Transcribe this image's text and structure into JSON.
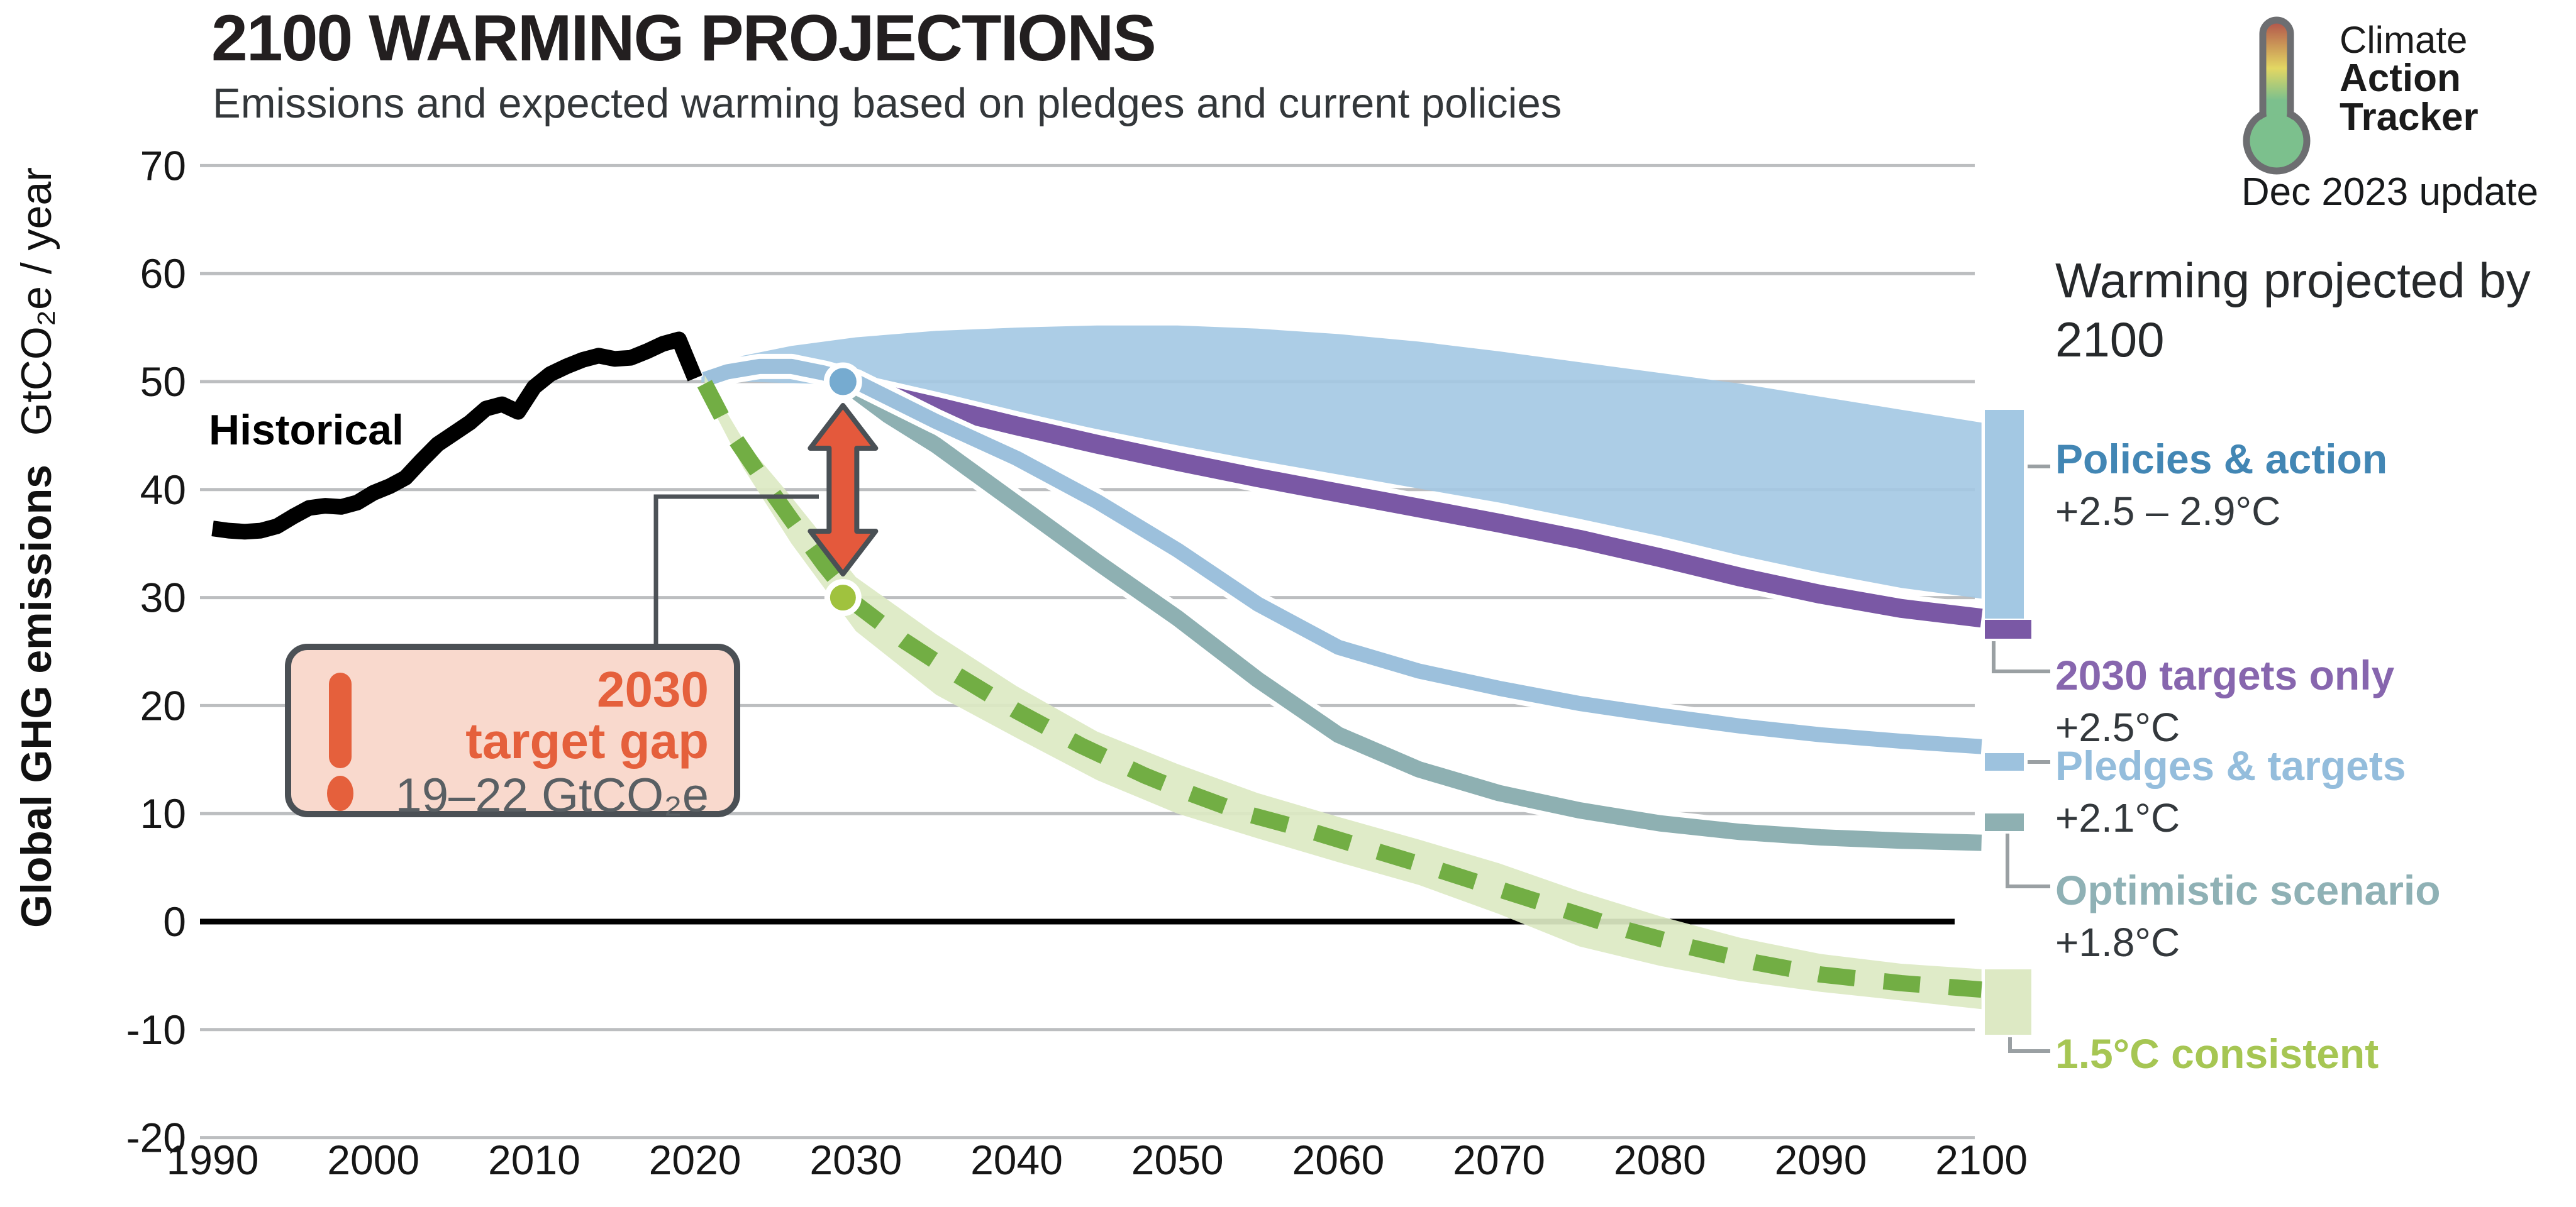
{
  "header": {
    "title": "2100 WARMING PROJECTIONS",
    "subtitle": "Emissions and expected warming based on pledges and current policies"
  },
  "logo": {
    "line1": "Climate",
    "line2": "Action",
    "line3": "Tracker",
    "update": "Dec 2023 update",
    "color_light": "#4cb9e3",
    "color_bold": "#2aa1d9"
  },
  "legend": {
    "heading": "Warming projected by 2100",
    "items": [
      {
        "label": "Policies & action",
        "temp": "+2.5 – 2.9°C",
        "text_color": "#4286b4",
        "swatch_color": "#a3c8e3"
      },
      {
        "label": "2030 targets only",
        "temp": "+2.5°C",
        "text_color": "#8766ae",
        "swatch_color": "#7a58a5"
      },
      {
        "label": "Pledges & targets",
        "temp": "+2.1°C",
        "text_color": "#94bddc",
        "swatch_color": "#9dc2de"
      },
      {
        "label": "Optimistic scenario",
        "temp": "+1.8°C",
        "text_color": "#8fb1b5",
        "swatch_color": "#8eb0b2"
      },
      {
        "label": "1.5°C consistent",
        "temp": "",
        "text_color": "#a6c653",
        "swatch_color": "#dde9c4"
      }
    ]
  },
  "callout": {
    "line1": "2030",
    "line2": "target gap",
    "value": "19–22  GtCO₂e",
    "accent": "#e5603c",
    "bg": "#f9d9cd",
    "border": "#4b5055"
  },
  "annotations": {
    "historical_label": "Historical",
    "policies_dot": {
      "year": 2029.2,
      "value": 50,
      "color": "#76abd0"
    },
    "consistent_dot": {
      "year": 2029.2,
      "value": 30,
      "color": "#a0c23e"
    },
    "gap_arrow": {
      "year": 2029.2,
      "from": 48,
      "to": 32,
      "color": "#e4593c",
      "outline": "#4a5055"
    }
  },
  "chart_data": {
    "type": "line",
    "title": "2100 WARMING PROJECTIONS",
    "xlabel": "",
    "ylabel_bold": "Global GHG emissions",
    "ylabel_unit": "GtCO₂e / year",
    "xlim": [
      1990,
      2100
    ],
    "ylim": [
      -20,
      70
    ],
    "x_ticks": [
      1990,
      2000,
      2010,
      2020,
      2030,
      2040,
      2050,
      2060,
      2070,
      2080,
      2090,
      2100
    ],
    "y_ticks": [
      70,
      60,
      50,
      40,
      30,
      20,
      10,
      0,
      -10,
      -20
    ],
    "grid": "horizontal",
    "gridline_color": "#bcbec0",
    "zero_line_color": "#000000",
    "series": [
      {
        "name": "Historical",
        "type": "line",
        "color": "#000000",
        "width": 25,
        "points": [
          [
            1990,
            36.4
          ],
          [
            1991,
            36.2
          ],
          [
            1992,
            36.1
          ],
          [
            1993,
            36.2
          ],
          [
            1994,
            36.6
          ],
          [
            1995,
            37.5
          ],
          [
            1996,
            38.3
          ],
          [
            1997,
            38.5
          ],
          [
            1998,
            38.4
          ],
          [
            1999,
            38.8
          ],
          [
            2000,
            39.7
          ],
          [
            2001,
            40.3
          ],
          [
            2002,
            41.1
          ],
          [
            2003,
            42.7
          ],
          [
            2004,
            44.2
          ],
          [
            2005,
            45.2
          ],
          [
            2006,
            46.2
          ],
          [
            2007,
            47.5
          ],
          [
            2008,
            47.9
          ],
          [
            2009,
            47.2
          ],
          [
            2010,
            49.5
          ],
          [
            2011,
            50.7
          ],
          [
            2012,
            51.4
          ],
          [
            2013,
            52.0
          ],
          [
            2014,
            52.4
          ],
          [
            2015,
            52.1
          ],
          [
            2016,
            52.2
          ],
          [
            2017,
            52.8
          ],
          [
            2018,
            53.5
          ],
          [
            2019,
            53.9
          ],
          [
            2020,
            50.3
          ]
        ]
      },
      {
        "name": "Policies & action",
        "type": "band",
        "color": "#a3c8e3",
        "warming": "+2.5 – 2.9°C",
        "upper": [
          [
            2020.4,
            50.4
          ],
          [
            2021,
            51.2
          ],
          [
            2023,
            52.4
          ],
          [
            2026,
            53.3
          ],
          [
            2030,
            54.1
          ],
          [
            2035,
            54.7
          ],
          [
            2040,
            55.0
          ],
          [
            2045,
            55.2
          ],
          [
            2050,
            55.2
          ],
          [
            2055,
            54.9
          ],
          [
            2060,
            54.4
          ],
          [
            2065,
            53.7
          ],
          [
            2070,
            52.8
          ],
          [
            2075,
            51.8
          ],
          [
            2080,
            50.8
          ],
          [
            2085,
            49.8
          ],
          [
            2090,
            48.6
          ],
          [
            2095,
            47.4
          ],
          [
            2100,
            46.2
          ]
        ],
        "lower": [
          [
            2020.4,
            49.9
          ],
          [
            2021,
            50.1
          ],
          [
            2025,
            49.9
          ],
          [
            2030,
            49.7
          ],
          [
            2035,
            48.4
          ],
          [
            2040,
            47.1
          ],
          [
            2045,
            45.6
          ],
          [
            2050,
            44.1
          ],
          [
            2055,
            42.7
          ],
          [
            2060,
            41.4
          ],
          [
            2065,
            40.1
          ],
          [
            2070,
            38.8
          ],
          [
            2075,
            37.3
          ],
          [
            2080,
            35.7
          ],
          [
            2085,
            33.9
          ],
          [
            2090,
            32.3
          ],
          [
            2095,
            30.9
          ],
          [
            2100,
            29.9
          ]
        ]
      },
      {
        "name": "2030 targets only",
        "type": "line",
        "color": "#7a58a5",
        "width": 30,
        "halo": 46,
        "warming": "+2.5°C",
        "points": [
          [
            2029.2,
            50.0
          ],
          [
            2030,
            49.4
          ],
          [
            2035,
            47.7
          ],
          [
            2040,
            45.9
          ],
          [
            2045,
            44.2
          ],
          [
            2050,
            42.6
          ],
          [
            2055,
            41.1
          ],
          [
            2060,
            39.7
          ],
          [
            2065,
            38.3
          ],
          [
            2070,
            36.9
          ],
          [
            2075,
            35.4
          ],
          [
            2080,
            33.7
          ],
          [
            2085,
            31.9
          ],
          [
            2090,
            30.3
          ],
          [
            2095,
            29.0
          ],
          [
            2100,
            28.1
          ]
        ]
      },
      {
        "name": "Optimistic scenario",
        "type": "line",
        "color": "#8eb0b2",
        "width": 26,
        "halo": 42,
        "warming": "+1.8°C",
        "points": [
          [
            2029.2,
            50.0
          ],
          [
            2032,
            46.9
          ],
          [
            2035,
            44.1
          ],
          [
            2040,
            38.7
          ],
          [
            2045,
            33.3
          ],
          [
            2050,
            28.1
          ],
          [
            2055,
            22.4
          ],
          [
            2060,
            17.3
          ],
          [
            2065,
            14.1
          ],
          [
            2070,
            11.9
          ],
          [
            2075,
            10.3
          ],
          [
            2080,
            9.1
          ],
          [
            2085,
            8.3
          ],
          [
            2090,
            7.8
          ],
          [
            2095,
            7.5
          ],
          [
            2100,
            7.3
          ]
        ]
      },
      {
        "name": "Pledges & targets",
        "type": "line",
        "color": "#9cc0dc",
        "width": 24,
        "halo": 40,
        "warming": "+2.1°C",
        "points": [
          [
            2020.6,
            50.2
          ],
          [
            2022,
            50.9
          ],
          [
            2024,
            51.4
          ],
          [
            2026,
            51.4
          ],
          [
            2028,
            50.8
          ],
          [
            2030,
            50.0
          ],
          [
            2035,
            46.3
          ],
          [
            2040,
            42.9
          ],
          [
            2045,
            38.9
          ],
          [
            2050,
            34.4
          ],
          [
            2055,
            29.4
          ],
          [
            2060,
            25.4
          ],
          [
            2065,
            23.2
          ],
          [
            2070,
            21.6
          ],
          [
            2075,
            20.2
          ],
          [
            2080,
            19.1
          ],
          [
            2085,
            18.1
          ],
          [
            2090,
            17.3
          ],
          [
            2095,
            16.7
          ],
          [
            2100,
            16.2
          ]
        ]
      },
      {
        "name": "1.5°C consistent",
        "type": "band+dashed",
        "band_color": "#dce9c3",
        "line_color": "#72ae44",
        "dash": [
          58,
          46
        ],
        "width": 26,
        "line": [
          [
            2020.6,
            49.8
          ],
          [
            2022,
            45.8
          ],
          [
            2024,
            41.4
          ],
          [
            2026,
            37.2
          ],
          [
            2028,
            33.1
          ],
          [
            2030,
            29.4
          ],
          [
            2033,
            26.0
          ],
          [
            2036,
            23.1
          ],
          [
            2040,
            19.5
          ],
          [
            2044,
            16.3
          ],
          [
            2048,
            13.5
          ],
          [
            2050,
            12.3
          ],
          [
            2054,
            10.1
          ],
          [
            2058,
            8.5
          ],
          [
            2062,
            6.7
          ],
          [
            2066,
            4.9
          ],
          [
            2070,
            3.0
          ],
          [
            2074,
            1.1
          ],
          [
            2078,
            -0.8
          ],
          [
            2082,
            -2.4
          ],
          [
            2086,
            -3.8
          ],
          [
            2090,
            -4.9
          ],
          [
            2095,
            -5.7
          ],
          [
            2100,
            -6.3
          ]
        ],
        "upper": [
          [
            2020.6,
            50.6
          ],
          [
            2023,
            44.6
          ],
          [
            2026,
            39.3
          ],
          [
            2030,
            31.9
          ],
          [
            2035,
            26.6
          ],
          [
            2040,
            21.8
          ],
          [
            2045,
            17.6
          ],
          [
            2050,
            14.6
          ],
          [
            2055,
            11.9
          ],
          [
            2060,
            9.7
          ],
          [
            2065,
            7.6
          ],
          [
            2070,
            5.4
          ],
          [
            2075,
            2.8
          ],
          [
            2080,
            0.5
          ],
          [
            2085,
            -1.5
          ],
          [
            2090,
            -3.0
          ],
          [
            2095,
            -3.9
          ],
          [
            2100,
            -4.4
          ]
        ],
        "lower": [
          [
            2020.6,
            48.9
          ],
          [
            2023,
            42.0
          ],
          [
            2026,
            35.0
          ],
          [
            2030,
            26.9
          ],
          [
            2035,
            21.0
          ],
          [
            2040,
            17.0
          ],
          [
            2045,
            13.1
          ],
          [
            2050,
            10.0
          ],
          [
            2055,
            7.7
          ],
          [
            2060,
            5.5
          ],
          [
            2065,
            3.4
          ],
          [
            2070,
            0.7
          ],
          [
            2075,
            -2.3
          ],
          [
            2080,
            -4.1
          ],
          [
            2085,
            -5.5
          ],
          [
            2090,
            -6.5
          ],
          [
            2095,
            -7.3
          ],
          [
            2100,
            -8.1
          ]
        ]
      }
    ]
  }
}
